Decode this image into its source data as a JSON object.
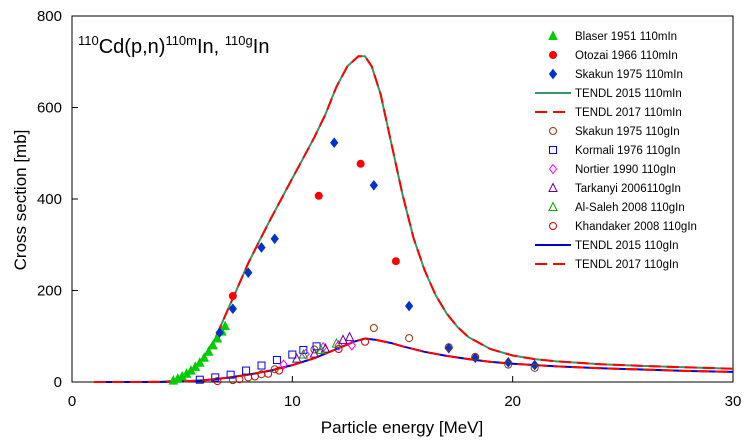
{
  "chart_data": {
    "type": "scatter",
    "title_parts": [
      {
        "text": "110",
        "sup": true
      },
      {
        "text": "Cd(p,n)",
        "sup": false
      },
      {
        "text": "110m",
        "sup": true
      },
      {
        "text": "In, ",
        "sup": false
      },
      {
        "text": "110g",
        "sup": true
      },
      {
        "text": "In",
        "sup": false
      }
    ],
    "xlabel": "Particle energy [MeV]",
    "ylabel": "Cross section [mb]",
    "xlim": [
      0,
      30
    ],
    "ylim": [
      0,
      800
    ],
    "xticks": [
      0,
      10,
      20,
      30
    ],
    "yticks": [
      0,
      200,
      400,
      600,
      800
    ],
    "legend_position": "top-right",
    "series": [
      {
        "name": "Blaser 1951 110mIn",
        "marker": "triangle",
        "filled": true,
        "color": "#00cc00",
        "points": [
          [
            4.6,
            3
          ],
          [
            4.8,
            7
          ],
          [
            5.0,
            12
          ],
          [
            5.2,
            18
          ],
          [
            5.4,
            25
          ],
          [
            5.6,
            33
          ],
          [
            5.8,
            42
          ],
          [
            6.0,
            53
          ],
          [
            6.2,
            66
          ],
          [
            6.4,
            80
          ],
          [
            6.6,
            95
          ],
          [
            6.8,
            110
          ],
          [
            6.95,
            122
          ]
        ]
      },
      {
        "name": "Otozai 1966 110mIn",
        "marker": "circle",
        "filled": true,
        "color": "#ff0000",
        "points": [
          [
            7.3,
            188
          ],
          [
            11.2,
            407
          ],
          [
            13.1,
            477
          ],
          [
            14.7,
            264
          ]
        ]
      },
      {
        "name": "Skakun 1975 110mIn",
        "marker": "diamond",
        "filled": true,
        "color": "#0033cc",
        "points": [
          [
            6.7,
            108
          ],
          [
            7.3,
            160
          ],
          [
            8.0,
            239
          ],
          [
            8.6,
            294
          ],
          [
            9.2,
            313
          ],
          [
            11.9,
            523
          ],
          [
            13.7,
            430
          ],
          [
            15.3,
            166
          ],
          [
            17.1,
            74
          ],
          [
            18.3,
            53
          ],
          [
            19.8,
            43
          ],
          [
            21.0,
            37
          ]
        ]
      },
      {
        "name": "TENDL 2015 110mIn",
        "line": true,
        "dashed": false,
        "color": "#339966"
      },
      {
        "name": "TENDL 2017 110mIn",
        "line": true,
        "dashed": true,
        "color": "#ff0000"
      },
      {
        "name": "Skakun 1975 110gIn",
        "marker": "circle",
        "filled": false,
        "color": "#993300",
        "points": [
          [
            7.3,
            4
          ],
          [
            8.0,
            10
          ],
          [
            8.6,
            17
          ],
          [
            9.2,
            28
          ],
          [
            11.0,
            71
          ],
          [
            13.7,
            118
          ],
          [
            15.3,
            96
          ],
          [
            17.1,
            76
          ],
          [
            18.3,
            55
          ],
          [
            19.8,
            38
          ],
          [
            21.0,
            31
          ]
        ]
      },
      {
        "name": "Kormali 1976 110gIn",
        "marker": "square",
        "filled": false,
        "color": "#0000ff",
        "points": [
          [
            5.8,
            5
          ],
          [
            6.5,
            10
          ],
          [
            7.2,
            16
          ],
          [
            7.9,
            25
          ],
          [
            8.6,
            36
          ],
          [
            9.3,
            48
          ],
          [
            10.0,
            60
          ],
          [
            10.5,
            70
          ],
          [
            11.1,
            78
          ]
        ]
      },
      {
        "name": "Nortier 1990 110gIn",
        "marker": "diamond",
        "filled": false,
        "color": "#ff00ff",
        "points": [
          [
            9.6,
            38
          ],
          [
            10.6,
            61
          ],
          [
            11.4,
            76
          ],
          [
            12.1,
            80
          ],
          [
            12.7,
            80
          ]
        ]
      },
      {
        "name": "Tarkanyi 2006110gIn",
        "marker": "triangle",
        "filled": false,
        "color": "#660099",
        "points": [
          [
            10.2,
            51
          ],
          [
            11.0,
            62
          ],
          [
            11.5,
            73
          ],
          [
            12.3,
            92
          ],
          [
            12.6,
            98
          ]
        ]
      },
      {
        "name": "Al-Saleh 2008 110gIn",
        "marker": "triangle",
        "filled": false,
        "color": "#00aa00",
        "points": [
          [
            10.5,
            60
          ],
          [
            11.3,
            70
          ],
          [
            12.0,
            84
          ]
        ]
      },
      {
        "name": "Khandaker 2008 110gIn",
        "marker": "circle",
        "filled": false,
        "color": "#cc0000",
        "points": [
          [
            6.6,
            2
          ],
          [
            7.6,
            6
          ],
          [
            8.3,
            12
          ],
          [
            8.9,
            18
          ],
          [
            9.4,
            25
          ],
          [
            12.1,
            72
          ],
          [
            13.3,
            88
          ]
        ]
      },
      {
        "name": "TENDL 2015 110gIn",
        "line": true,
        "dashed": false,
        "color": "#0000cc"
      },
      {
        "name": "TENDL 2017 110gIn",
        "line": true,
        "dashed": true,
        "color": "#ff0000"
      }
    ],
    "curves": {
      "m": [
        [
          1,
          0
        ],
        [
          3,
          0
        ],
        [
          4,
          0.4
        ],
        [
          4.6,
          2
        ],
        [
          5,
          8
        ],
        [
          5.5,
          25
        ],
        [
          6,
          55
        ],
        [
          6.5,
          95
        ],
        [
          7,
          150
        ],
        [
          7.5,
          205
        ],
        [
          8,
          260
        ],
        [
          8.5,
          308
        ],
        [
          9,
          355
        ],
        [
          9.5,
          400
        ],
        [
          10,
          445
        ],
        [
          10.5,
          490
        ],
        [
          11,
          535
        ],
        [
          11.5,
          585
        ],
        [
          12,
          645
        ],
        [
          12.5,
          690
        ],
        [
          13,
          712
        ],
        [
          13.3,
          712
        ],
        [
          13.6,
          690
        ],
        [
          14,
          630
        ],
        [
          14.5,
          520
        ],
        [
          15,
          410
        ],
        [
          15.5,
          315
        ],
        [
          16,
          245
        ],
        [
          16.5,
          190
        ],
        [
          17,
          150
        ],
        [
          17.5,
          120
        ],
        [
          18,
          98
        ],
        [
          19,
          72
        ],
        [
          20,
          58
        ],
        [
          21,
          50
        ],
        [
          22,
          45
        ],
        [
          24,
          39
        ],
        [
          26,
          35
        ],
        [
          28,
          32
        ],
        [
          30,
          29
        ]
      ],
      "g": [
        [
          1,
          0
        ],
        [
          4,
          0
        ],
        [
          5,
          1
        ],
        [
          6,
          4
        ],
        [
          7,
          9
        ],
        [
          8,
          16
        ],
        [
          9,
          25
        ],
        [
          10,
          37
        ],
        [
          11,
          52
        ],
        [
          12,
          72
        ],
        [
          12.8,
          88
        ],
        [
          13.3,
          95
        ],
        [
          13.8,
          92
        ],
        [
          14.5,
          85
        ],
        [
          15,
          78
        ],
        [
          16,
          66
        ],
        [
          17,
          57
        ],
        [
          18,
          50
        ],
        [
          19,
          44
        ],
        [
          20,
          40
        ],
        [
          22,
          34
        ],
        [
          24,
          30
        ],
        [
          26,
          27
        ],
        [
          28,
          24
        ],
        [
          30,
          22
        ]
      ]
    }
  }
}
